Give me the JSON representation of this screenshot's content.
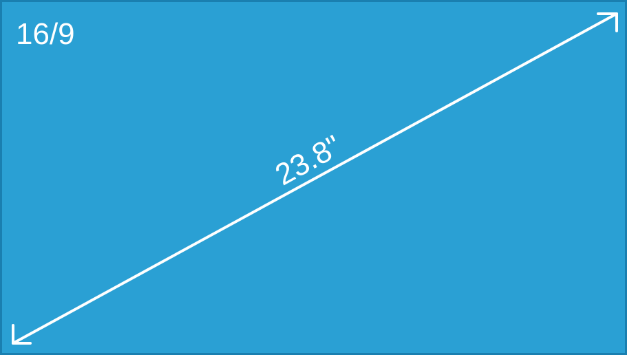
{
  "diagram": {
    "aspect_ratio_label": "16/9",
    "diagonal_size_label": "23.8\""
  },
  "colors": {
    "screen_fill": "#2aa0d4",
    "screen_border": "#1a7fb0",
    "foreground": "#ffffff"
  }
}
